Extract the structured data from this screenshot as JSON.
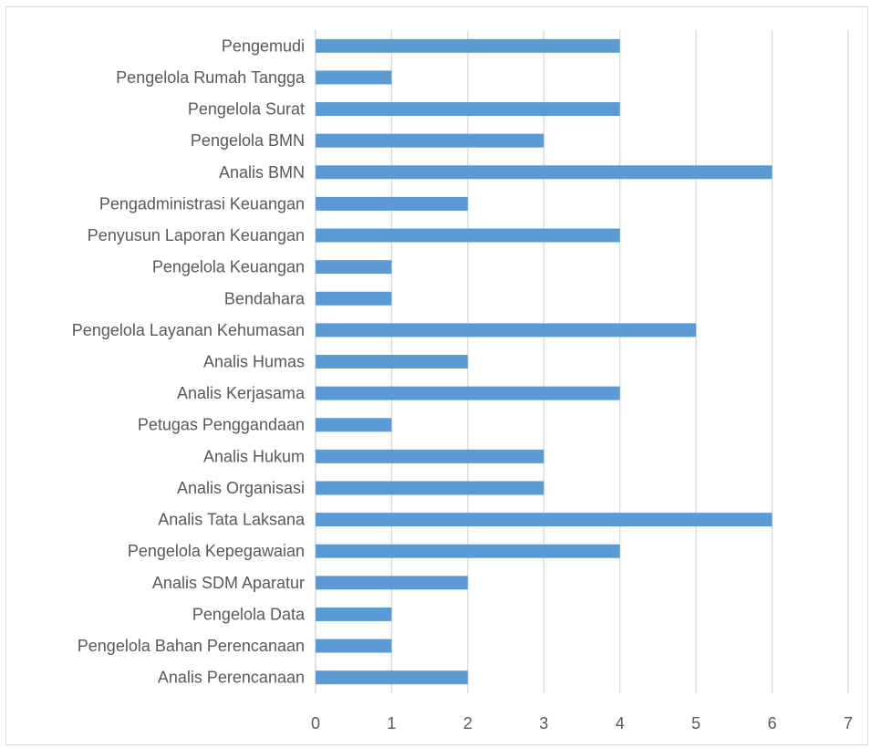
{
  "chart_data": {
    "type": "bar",
    "orientation": "horizontal",
    "title": "",
    "xlabel": "",
    "ylabel": "",
    "xlim": [
      0,
      7
    ],
    "x_ticks": [
      "0",
      "1",
      "2",
      "3",
      "4",
      "5",
      "6",
      "7"
    ],
    "grid": "vertical gridlines on",
    "legend": "none",
    "bar_color": "#5b9bd5",
    "categories": [
      "Pengemudi",
      "Pengelola Rumah Tangga",
      "Pengelola Surat",
      "Pengelola BMN",
      "Analis BMN",
      "Pengadministrasi Keuangan",
      "Penyusun Laporan Keuangan",
      "Pengelola Keuangan",
      "Bendahara",
      "Pengelola Layanan Kehumasan",
      "Analis Humas",
      "Analis Kerjasama",
      "Petugas Penggandaan",
      "Analis Hukum",
      "Analis Organisasi",
      "Analis Tata Laksana",
      "Pengelola Kepegawaian",
      "Analis SDM Aparatur",
      "Pengelola Data",
      "Pengelola Bahan Perencanaan",
      "Analis Perencanaan"
    ],
    "values": [
      4,
      1,
      4,
      3,
      6,
      2,
      4,
      1,
      1,
      5,
      2,
      4,
      1,
      3,
      3,
      6,
      4,
      2,
      1,
      1,
      2
    ]
  }
}
